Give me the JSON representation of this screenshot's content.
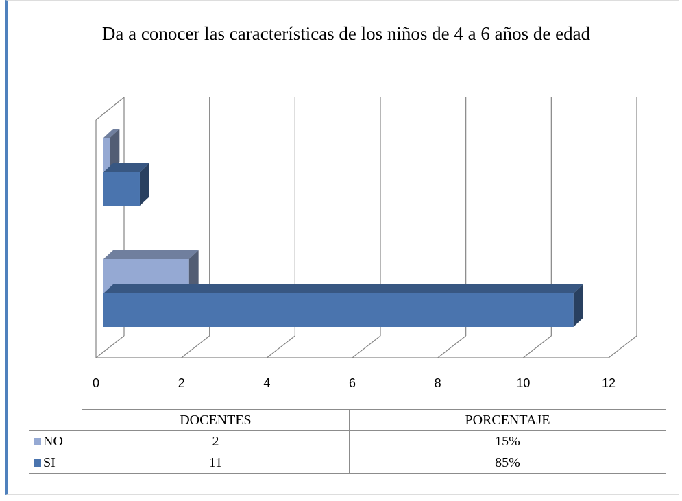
{
  "chart_data": {
    "type": "bar",
    "orientation": "horizontal",
    "title": "Da a conocer las características de los niños de 4 a 6 años de edad",
    "categories": [
      "DOCENTES",
      "PORCENTAJE"
    ],
    "series": [
      {
        "name": "NO",
        "color": "#95a9d3",
        "values": [
          2,
          0.15
        ],
        "value_labels": [
          "2",
          "15%"
        ]
      },
      {
        "name": "SI",
        "color": "#4a74ae",
        "values": [
          11,
          0.85
        ],
        "value_labels": [
          "11",
          "85%"
        ]
      }
    ],
    "xlim": [
      0,
      12
    ],
    "xticks": [
      0,
      2,
      4,
      6,
      8,
      10,
      12
    ],
    "grid": true
  }
}
